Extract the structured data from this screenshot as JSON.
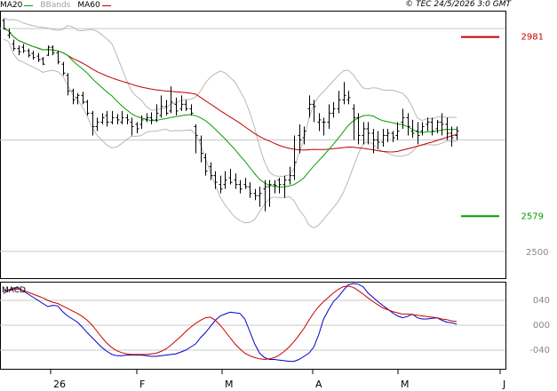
{
  "header": {
    "copyright": "© TEC 24/5/2026 3:0 GMT",
    "legend": [
      {
        "label": "MA20",
        "color": "#00a000"
      },
      {
        "label": "BBands",
        "color": "#b0b0b0"
      },
      {
        "label": "MA60",
        "color": "#c00000"
      }
    ]
  },
  "chart_data": [
    {
      "type": "ohlc",
      "title": "",
      "ylim": [
        2440,
        3040
      ],
      "y_ticks": [
        {
          "value": 2500,
          "label": "2500"
        }
      ],
      "grid_levels": [
        2750,
        3000
      ],
      "x_labels": [
        "26",
        "F",
        "M",
        "A",
        "M",
        "J"
      ],
      "levels": [
        {
          "label": "2981",
          "value": 2981,
          "color": "#c00000"
        },
        {
          "label": "2579",
          "value": 2579,
          "color": "#00a000"
        }
      ],
      "ohlc": [
        [
          3018,
          3000,
          3022,
          2998
        ],
        [
          2985,
          2990,
          3000,
          2978
        ],
        [
          2965,
          2955,
          2975,
          2950
        ],
        [
          2955,
          2948,
          2962,
          2940
        ],
        [
          2958,
          2950,
          2965,
          2945
        ],
        [
          2950,
          2940,
          2955,
          2935
        ],
        [
          2944,
          2935,
          2950,
          2930
        ],
        [
          2938,
          2930,
          2945,
          2925
        ],
        [
          2932,
          2920,
          2936,
          2918
        ],
        [
          2940,
          2958,
          2962,
          2938
        ],
        [
          2958,
          2945,
          2962,
          2940
        ],
        [
          2945,
          2925,
          2950,
          2920
        ],
        [
          2920,
          2900,
          2925,
          2895
        ],
        [
          2895,
          2860,
          2900,
          2850
        ],
        [
          2860,
          2840,
          2865,
          2830
        ],
        [
          2845,
          2850,
          2855,
          2830
        ],
        [
          2850,
          2835,
          2858,
          2830
        ],
        [
          2835,
          2810,
          2840,
          2805
        ],
        [
          2810,
          2780,
          2815,
          2760
        ],
        [
          2780,
          2790,
          2800,
          2770
        ],
        [
          2790,
          2800,
          2810,
          2785
        ],
        [
          2805,
          2790,
          2815,
          2780
        ],
        [
          2790,
          2800,
          2815,
          2785
        ],
        [
          2800,
          2795,
          2808,
          2785
        ],
        [
          2790,
          2800,
          2815,
          2785
        ],
        [
          2800,
          2795,
          2808,
          2785
        ],
        [
          2790,
          2780,
          2800,
          2760
        ],
        [
          2785,
          2775,
          2790,
          2765
        ],
        [
          2785,
          2795,
          2805,
          2775
        ],
        [
          2795,
          2800,
          2810,
          2790
        ],
        [
          2800,
          2795,
          2812,
          2785
        ],
        [
          2795,
          2810,
          2830,
          2790
        ],
        [
          2805,
          2825,
          2850,
          2800
        ],
        [
          2825,
          2810,
          2840,
          2805
        ],
        [
          2815,
          2835,
          2870,
          2810
        ],
        [
          2830,
          2815,
          2845,
          2805
        ],
        [
          2820,
          2830,
          2850,
          2815
        ],
        [
          2830,
          2820,
          2840,
          2815
        ],
        [
          2820,
          2810,
          2830,
          2805
        ],
        [
          2780,
          2760,
          2785,
          2720
        ],
        [
          2750,
          2720,
          2760,
          2700
        ],
        [
          2710,
          2680,
          2720,
          2670
        ],
        [
          2690,
          2670,
          2700,
          2660
        ],
        [
          2670,
          2655,
          2680,
          2640
        ],
        [
          2650,
          2640,
          2670,
          2630
        ],
        [
          2650,
          2660,
          2680,
          2640
        ],
        [
          2665,
          2655,
          2685,
          2650
        ],
        [
          2660,
          2650,
          2675,
          2640
        ],
        [
          2650,
          2640,
          2660,
          2630
        ],
        [
          2650,
          2645,
          2665,
          2640
        ],
        [
          2645,
          2630,
          2655,
          2620
        ],
        [
          2630,
          2625,
          2640,
          2615
        ],
        [
          2625,
          2630,
          2645,
          2600
        ],
        [
          2640,
          2645,
          2660,
          2590
        ],
        [
          2645,
          2650,
          2660,
          2600
        ],
        [
          2650,
          2648,
          2660,
          2630
        ],
        [
          2660,
          2650,
          2665,
          2630
        ],
        [
          2650,
          2660,
          2670,
          2620
        ],
        [
          2660,
          2670,
          2690,
          2650
        ],
        [
          2670,
          2700,
          2760,
          2660
        ],
        [
          2760,
          2750,
          2785,
          2720
        ],
        [
          2755,
          2770,
          2780,
          2740
        ],
        [
          2820,
          2830,
          2850,
          2800
        ],
        [
          2830,
          2825,
          2840,
          2790
        ],
        [
          2790,
          2795,
          2810,
          2770
        ],
        [
          2790,
          2790,
          2800,
          2760
        ],
        [
          2790,
          2810,
          2830,
          2775
        ],
        [
          2810,
          2820,
          2835,
          2800
        ],
        [
          2820,
          2840,
          2860,
          2810
        ],
        [
          2840,
          2850,
          2880,
          2830
        ],
        [
          2840,
          2845,
          2860,
          2830
        ],
        [
          2820,
          2800,
          2830,
          2750
        ],
        [
          2800,
          2760,
          2810,
          2740
        ],
        [
          2760,
          2775,
          2790,
          2740
        ],
        [
          2775,
          2765,
          2790,
          2740
        ],
        [
          2765,
          2750,
          2775,
          2720
        ],
        [
          2750,
          2745,
          2770,
          2730
        ],
        [
          2745,
          2760,
          2775,
          2735
        ],
        [
          2760,
          2765,
          2775,
          2745
        ],
        [
          2765,
          2755,
          2770,
          2745
        ],
        [
          2760,
          2770,
          2790,
          2750
        ],
        [
          2790,
          2800,
          2820,
          2775
        ],
        [
          2800,
          2780,
          2810,
          2760
        ],
        [
          2770,
          2765,
          2795,
          2755
        ],
        [
          2770,
          2760,
          2790,
          2740
        ],
        [
          2770,
          2780,
          2790,
          2760
        ],
        [
          2785,
          2790,
          2800,
          2770
        ],
        [
          2790,
          2770,
          2800,
          2760
        ],
        [
          2775,
          2790,
          2795,
          2765
        ],
        [
          2790,
          2785,
          2810,
          2760
        ],
        [
          2785,
          2765,
          2800,
          2750
        ],
        [
          2765,
          2755,
          2780,
          2735
        ],
        [
          2760,
          2770,
          2780,
          2750
        ]
      ]
    },
    {
      "type": "line",
      "title": "MACD",
      "ylim": [
        -70,
        70
      ],
      "y_ticks": [
        {
          "value": 40,
          "label": "040"
        },
        {
          "value": 0,
          "label": "000"
        },
        {
          "value": -40,
          "label": "-040"
        }
      ],
      "series": [
        {
          "color": "#0000c8",
          "values": [
            51,
            56,
            60,
            60,
            55,
            50,
            45,
            40,
            35,
            30,
            32,
            31,
            22,
            15,
            10,
            5,
            -3,
            -12,
            -20,
            -28,
            -36,
            -42,
            -47,
            -49,
            -49,
            -48,
            -48,
            -48,
            -48,
            -49,
            -50,
            -50,
            -49,
            -48,
            -47,
            -46,
            -43,
            -40,
            -35,
            -30,
            -20,
            -12,
            -2,
            8,
            15,
            18,
            21,
            20,
            19,
            10,
            -10,
            -30,
            -45,
            -52,
            -55,
            -55,
            -56,
            -57,
            -58,
            -58,
            -55,
            -50,
            -45,
            -35,
            -15,
            10,
            25,
            38,
            46,
            56,
            65,
            67,
            66,
            62,
            52,
            45,
            38,
            32,
            26,
            20,
            15,
            12,
            14,
            18,
            12,
            10,
            10,
            11,
            12,
            8,
            5,
            4,
            2
          ]
        },
        {
          "color": "#c80000",
          "values": [
            55,
            57,
            58,
            58,
            56,
            53,
            50,
            47,
            44,
            40,
            37,
            35,
            31,
            27,
            23,
            19,
            14,
            8,
            0,
            -10,
            -20,
            -29,
            -36,
            -41,
            -44,
            -46,
            -47,
            -47,
            -47,
            -47,
            -46,
            -45,
            -42,
            -38,
            -32,
            -25,
            -18,
            -10,
            -3,
            3,
            8,
            12,
            13,
            8,
            0,
            -10,
            -20,
            -30,
            -38,
            -45,
            -49,
            -52,
            -54,
            -55,
            -54,
            -52,
            -48,
            -42,
            -35,
            -26,
            -16,
            -5,
            8,
            20,
            30,
            38,
            45,
            52,
            58,
            62,
            63,
            61,
            56,
            50,
            44,
            38,
            33,
            28,
            25,
            22,
            20,
            18,
            18,
            17,
            16,
            15,
            14,
            13,
            12,
            10,
            9,
            7,
            6
          ]
        }
      ]
    }
  ]
}
